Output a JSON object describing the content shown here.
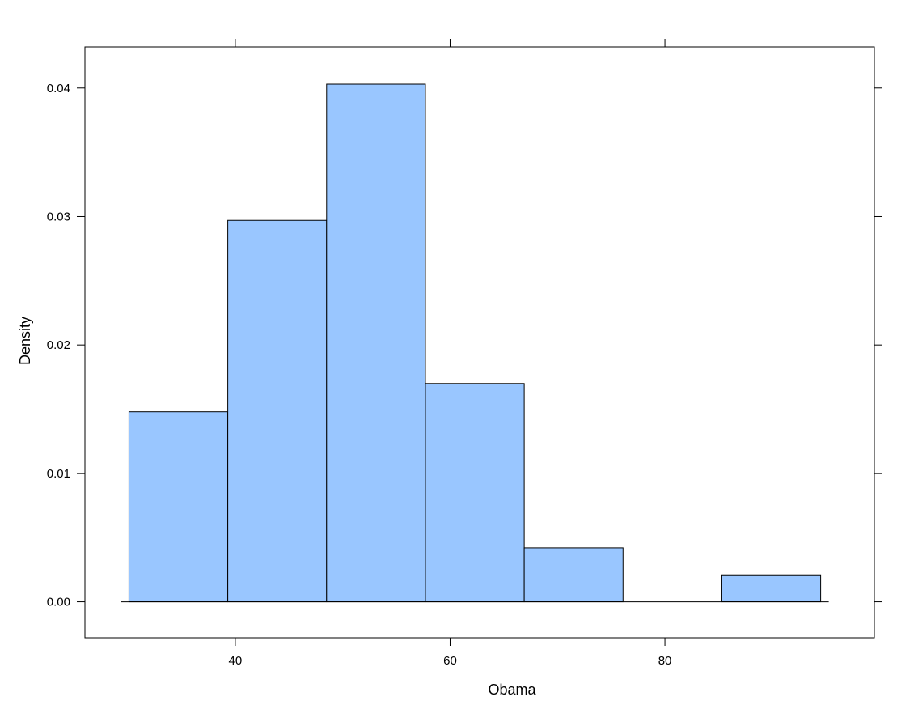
{
  "chart_data": {
    "type": "bar",
    "subtype": "histogram",
    "title": "",
    "xlabel": "Obama",
    "ylabel": "Density",
    "xlim": [
      26,
      99.5
    ],
    "ylim": [
      -0.0028,
      0.0432
    ],
    "x_ticks": [
      {
        "value": 40,
        "label": "40"
      },
      {
        "value": 60,
        "label": "60"
      },
      {
        "value": 80,
        "label": "80"
      }
    ],
    "y_ticks": [
      {
        "value": 0,
        "label": "0.00"
      },
      {
        "value": 0.01,
        "label": "0.01"
      },
      {
        "value": 0.02,
        "label": "0.02"
      },
      {
        "value": 0.03,
        "label": "0.03"
      },
      {
        "value": 0.04,
        "label": "0.04"
      }
    ],
    "bins": [
      {
        "x0": 30.1,
        "x1": 39.3,
        "density": 0.0148
      },
      {
        "x0": 39.3,
        "x1": 48.5,
        "density": 0.0297
      },
      {
        "x0": 48.5,
        "x1": 57.7,
        "density": 0.0403
      },
      {
        "x0": 57.7,
        "x1": 66.9,
        "density": 0.017
      },
      {
        "x0": 66.9,
        "x1": 76.1,
        "density": 0.0042
      },
      {
        "x0": 76.1,
        "x1": 85.3,
        "density": 0.0
      },
      {
        "x0": 85.3,
        "x1": 94.5,
        "density": 0.0021
      }
    ],
    "bar_color": "#99c6ff",
    "grid": false
  }
}
